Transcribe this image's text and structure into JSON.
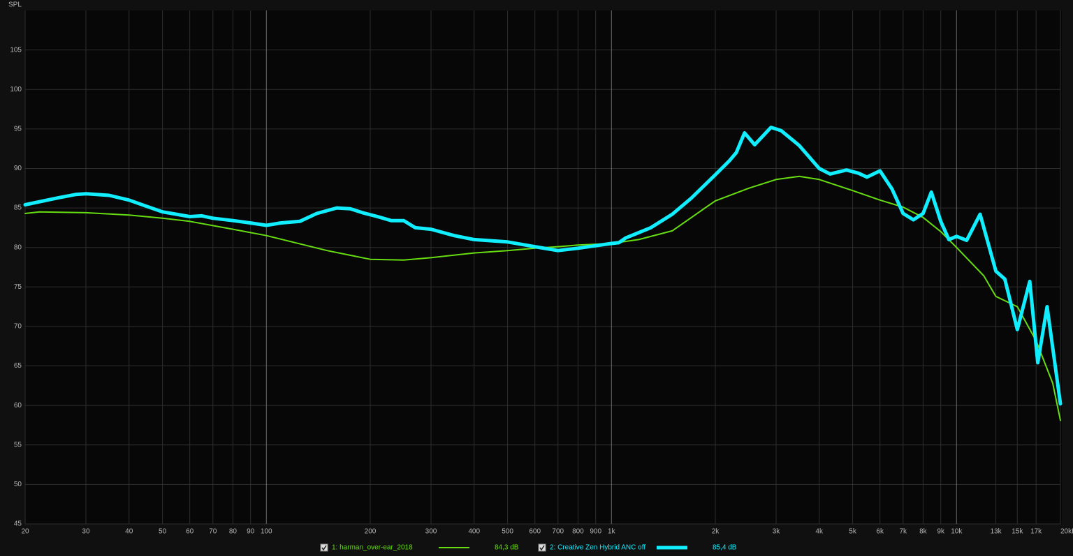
{
  "chart_data": {
    "type": "line",
    "y_label": "SPL",
    "xlog": true,
    "grid": true,
    "xlim": [
      20,
      20000
    ],
    "ylim": [
      45,
      110
    ],
    "yticks": [
      45,
      50,
      55,
      60,
      65,
      70,
      75,
      80,
      85,
      90,
      95,
      100,
      105
    ],
    "xticks": [
      20,
      30,
      40,
      50,
      60,
      70,
      80,
      90,
      100,
      200,
      300,
      400,
      500,
      600,
      700,
      800,
      900,
      {
        "value": 1000,
        "label": "1k"
      },
      {
        "value": 2000,
        "label": "2k"
      },
      {
        "value": 3000,
        "label": "3k"
      },
      {
        "value": 4000,
        "label": "4k"
      },
      {
        "value": 5000,
        "label": "5k"
      },
      {
        "value": 6000,
        "label": "6k"
      },
      {
        "value": 7000,
        "label": "7k"
      },
      {
        "value": 8000,
        "label": "8k"
      },
      {
        "value": 9000,
        "label": "9k"
      },
      {
        "value": 10000,
        "label": "10k"
      },
      {
        "value": 13000,
        "label": "13k"
      },
      {
        "value": 15000,
        "label": "15k"
      },
      {
        "value": 17000,
        "label": "17k"
      },
      {
        "value": 20000,
        "label": "20kHz"
      }
    ],
    "series": [
      {
        "name": "1: harman_over-ear_2018",
        "legend_value": "84,3 dB",
        "color": "#66dd11",
        "width": 2,
        "x": [
          20,
          22,
          30,
          40,
          50,
          60,
          80,
          100,
          150,
          200,
          250,
          300,
          400,
          500,
          600,
          700,
          800,
          1000,
          1200,
          1500,
          2000,
          2500,
          3000,
          3500,
          4000,
          5000,
          6000,
          7000,
          8000,
          9000,
          10000,
          12000,
          13000,
          15000,
          17000,
          19000,
          20000
        ],
        "values": [
          84.3,
          84.5,
          84.4,
          84.1,
          83.7,
          83.3,
          82.3,
          81.5,
          79.6,
          78.5,
          78.4,
          78.7,
          79.3,
          79.6,
          79.9,
          80.1,
          80.3,
          80.5,
          81.0,
          82.1,
          85.9,
          87.5,
          88.6,
          89.0,
          88.6,
          87.2,
          86.0,
          85.1,
          83.8,
          82.0,
          80.0,
          76.4,
          73.8,
          72.5,
          68.2,
          62.8,
          58.1
        ]
      },
      {
        "name": "2: Creative Zen Hybrid ANC off",
        "legend_value": "85,4 dB",
        "color": "#11eeff",
        "width": 5,
        "x": [
          20,
          25,
          28,
          30,
          35,
          40,
          45,
          50,
          60,
          65,
          70,
          80,
          90,
          100,
          110,
          125,
          140,
          160,
          175,
          190,
          210,
          230,
          250,
          270,
          300,
          350,
          400,
          500,
          600,
          700,
          800,
          1000,
          1050,
          1100,
          1300,
          1500,
          1700,
          2000,
          2200,
          2300,
          2430,
          2600,
          2900,
          3100,
          3500,
          4000,
          4300,
          4800,
          5200,
          5500,
          6000,
          6500,
          7000,
          7500,
          8000,
          8450,
          9000,
          9500,
          10000,
          10700,
          11700,
          13000,
          13800,
          15000,
          16300,
          17200,
          18300,
          20000
        ],
        "values": [
          85.4,
          86.3,
          86.7,
          86.8,
          86.6,
          86.0,
          85.2,
          84.5,
          83.9,
          84.0,
          83.7,
          83.4,
          83.1,
          82.8,
          83.1,
          83.3,
          84.3,
          85.0,
          84.9,
          84.4,
          83.9,
          83.4,
          83.4,
          82.5,
          82.3,
          81.5,
          81.0,
          80.7,
          80.1,
          79.6,
          79.9,
          80.5,
          80.6,
          81.2,
          82.5,
          84.2,
          86.2,
          89.2,
          91.0,
          92.0,
          94.5,
          93.0,
          95.2,
          94.8,
          92.9,
          90.0,
          89.3,
          89.8,
          89.4,
          88.9,
          89.7,
          87.4,
          84.3,
          83.5,
          84.3,
          87.0,
          83.3,
          81.0,
          81.4,
          80.9,
          84.2,
          77.0,
          76.0,
          69.6,
          75.7,
          65.4,
          72.5,
          60.2
        ]
      }
    ]
  }
}
